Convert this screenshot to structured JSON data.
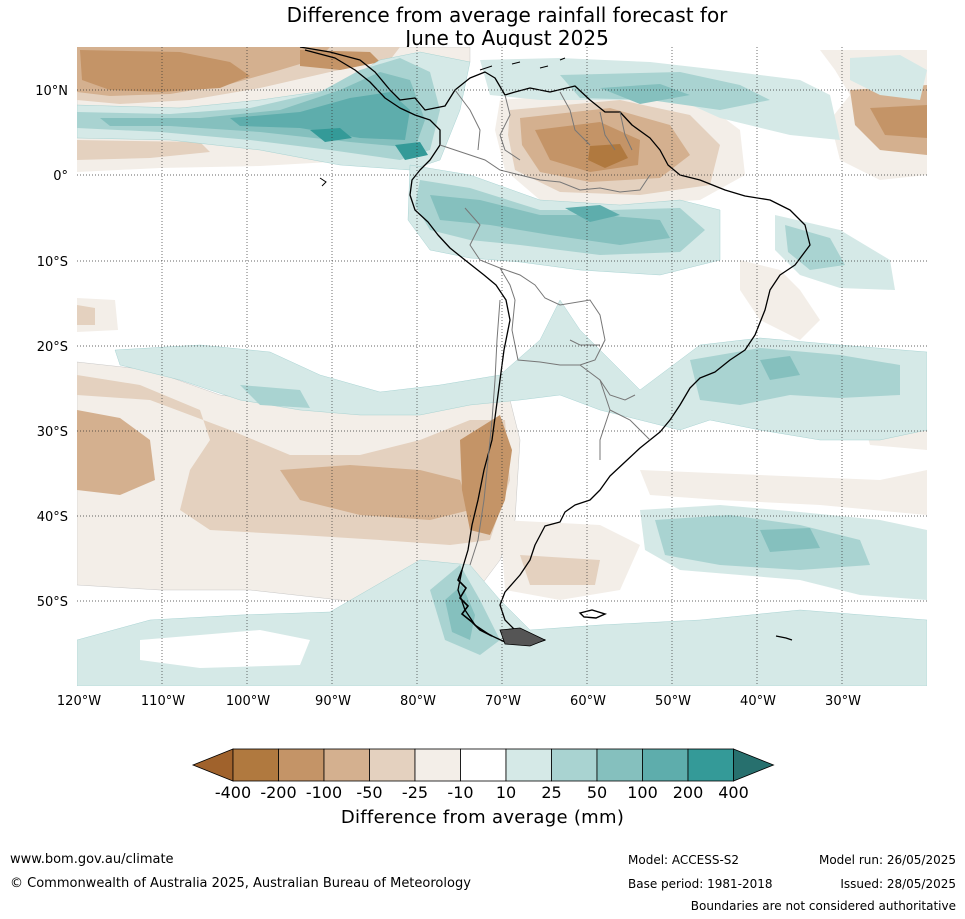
{
  "title_line1": "Difference from average rainfall forecast for",
  "title_line2": "June to August 2025",
  "axes": {
    "lat_labels": [
      "10°N",
      "0°",
      "10°S",
      "20°S",
      "30°S",
      "40°S",
      "50°S"
    ],
    "lon_labels": [
      "120°W",
      "110°W",
      "100°W",
      "90°W",
      "80°W",
      "70°W",
      "60°W",
      "50°W",
      "40°W",
      "30°W"
    ]
  },
  "colorbar": {
    "title": "Difference from average (mm)",
    "ticks": [
      "-400",
      "-200",
      "-100",
      "-50",
      "-25",
      "-10",
      "10",
      "25",
      "50",
      "100",
      "200",
      "400"
    ],
    "colors": [
      "#a0622c",
      "#b0793f",
      "#c49467",
      "#d4b08f",
      "#e4d1bf",
      "#f3eee8",
      "#ffffff",
      "#d5e9e7",
      "#a9d3d1",
      "#85c0be",
      "#5eadac",
      "#349a98",
      "#27706e"
    ]
  },
  "footer": {
    "website": "www.bom.gov.au/climate",
    "copyright": "© Commonwealth of Australia 2025, Australian Bureau of Meteorology",
    "model": "Model: ACCESS-S2",
    "base_period": "Base period: 1981-2018",
    "model_run": "Model run: 26/05/2025",
    "issued": "Issued: 28/05/2025",
    "boundaries_note": "Boundaries are not considered authoritative"
  }
}
